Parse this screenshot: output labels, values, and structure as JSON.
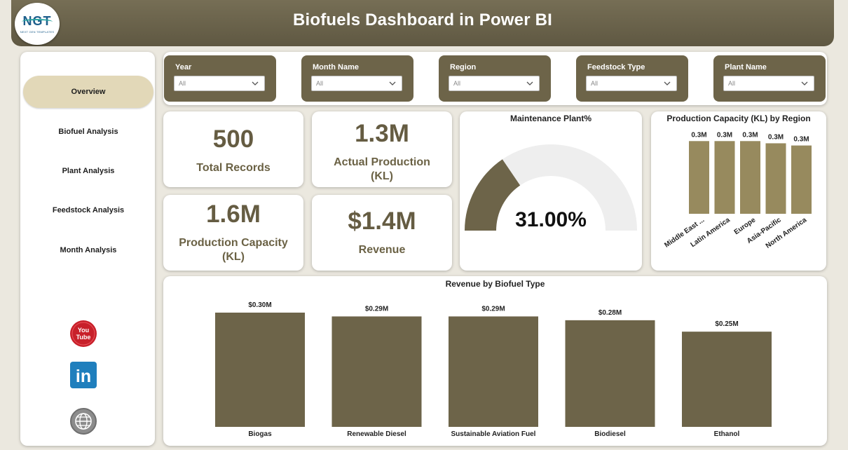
{
  "header": {
    "title": "Biofuels Dashboard in Power BI"
  },
  "logo": {
    "text": "NGT",
    "subtitle": "NEXT GEN TEMPLATES"
  },
  "colors": {
    "accent": "#6d6449",
    "header": "#6b6349",
    "active_nav": "#e2d8b8",
    "gauge_track": "#eeeeee"
  },
  "sidebar": {
    "items": [
      {
        "label": "Overview",
        "active": true
      },
      {
        "label": "Biofuel Analysis"
      },
      {
        "label": "Plant Analysis"
      },
      {
        "label": "Feedstock Analysis"
      },
      {
        "label": "Month Analysis"
      }
    ],
    "social": [
      "youtube-icon",
      "linkedin-icon",
      "globe-icon"
    ],
    "youtube_text": "You Tube",
    "linkedin_text": "in"
  },
  "filters": [
    {
      "label": "Year",
      "value": "All"
    },
    {
      "label": "Month Name",
      "value": "All"
    },
    {
      "label": "Region",
      "value": "All"
    },
    {
      "label": "Feedstock Type",
      "value": "All"
    },
    {
      "label": "Plant Name",
      "value": "All"
    }
  ],
  "kpis": {
    "total_records": {
      "value": "500",
      "label": "Total Records"
    },
    "actual_production": {
      "value": "1.3M",
      "label": "Actual Production (KL)"
    },
    "production_capacity": {
      "value": "1.6M",
      "label": "Production Capacity (KL)"
    },
    "revenue": {
      "value": "$1.4M",
      "label": "Revenue"
    }
  },
  "gauge": {
    "title": "Maintenance Plant%",
    "value_text": "31.00%",
    "value": 0.31
  },
  "chart_data": [
    {
      "type": "bar",
      "title": "Production Capacity (KL) by Region",
      "categories": [
        "Middle East ...",
        "Latin America",
        "Europe",
        "Asia-Pacific",
        "North America"
      ],
      "values": [
        0.33,
        0.33,
        0.33,
        0.32,
        0.31
      ],
      "data_labels": [
        "0.3M",
        "0.3M",
        "0.3M",
        "0.3M",
        "0.3M"
      ]
    },
    {
      "type": "bar",
      "title": "Revenue by Biofuel Type",
      "categories": [
        "Biogas",
        "Renewable Diesel",
        "Sustainable Aviation Fuel",
        "Biodiesel",
        "Ethanol"
      ],
      "values": [
        0.3,
        0.29,
        0.29,
        0.28,
        0.25
      ],
      "data_labels": [
        "$0.30M",
        "$0.29M",
        "$0.29M",
        "$0.28M",
        "$0.25M"
      ]
    }
  ]
}
